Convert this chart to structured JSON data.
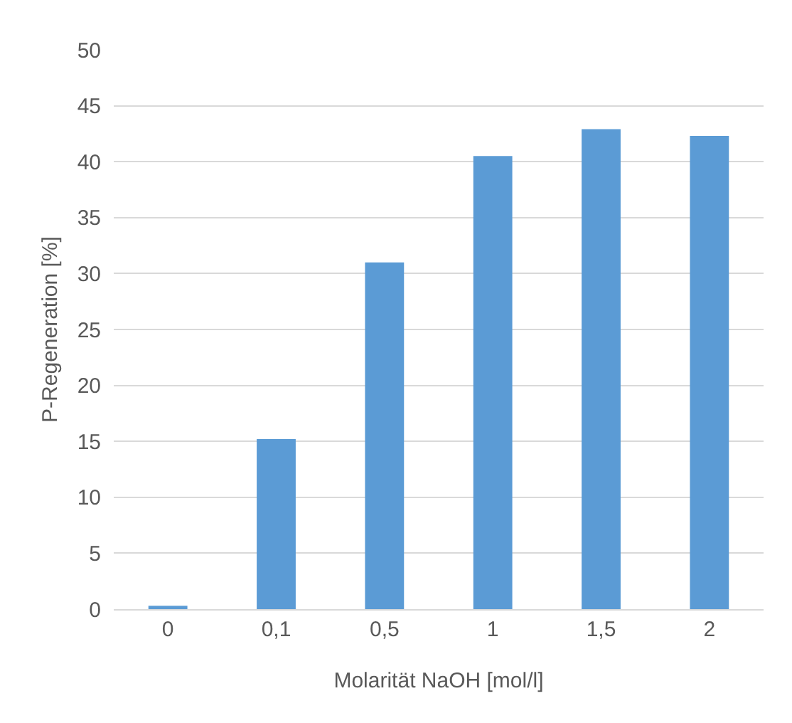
{
  "chart_data": {
    "type": "bar",
    "xlabel": "Molarität NaOH [mol/l]",
    "ylabel": "P-Regeneration [%]",
    "categories": [
      "0",
      "0,1",
      "0,5",
      "1",
      "1,5",
      "2"
    ],
    "values": [
      0.3,
      15.2,
      31,
      40.5,
      42.9,
      42.3
    ],
    "color": "#5b9bd5",
    "ylim": [
      0,
      50
    ],
    "yticks": [
      0,
      5,
      10,
      15,
      20,
      25,
      30,
      35,
      40,
      45,
      50
    ],
    "grid": "y"
  }
}
